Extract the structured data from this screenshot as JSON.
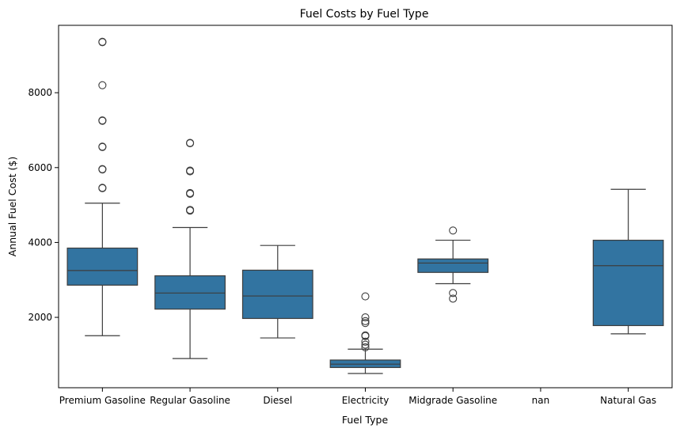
{
  "chart_data": {
    "type": "boxplot",
    "title": "Fuel Costs by Fuel Type",
    "xlabel": "Fuel Type",
    "ylabel": "Annual Fuel Cost ($)",
    "ylim": [
      120,
      9800
    ],
    "yticks": [
      2000,
      4000,
      6000,
      8000
    ],
    "grid": false,
    "box_color": "#3274a1",
    "categories": [
      "Premium Gasoline",
      "Regular Gasoline",
      "Diesel",
      "Electricity",
      "Midgrade Gasoline",
      "nan",
      "Natural Gas"
    ],
    "boxes": [
      {
        "category": "Premium Gasoline",
        "whisker_low": 1510,
        "q1": 2860,
        "median": 3250,
        "q3": 3850,
        "whisker_high": 5050,
        "outliers": [
          5450,
          5460,
          5950,
          5960,
          6550,
          6560,
          7250,
          7260,
          8200,
          9350,
          9360
        ]
      },
      {
        "category": "Regular Gasoline",
        "whisker_low": 900,
        "q1": 2220,
        "median": 2650,
        "q3": 3110,
        "whisker_high": 4400,
        "outliers": [
          4850,
          4870,
          5300,
          5320,
          5900,
          5920,
          6650,
          6660
        ]
      },
      {
        "category": "Diesel",
        "whisker_low": 1450,
        "q1": 1970,
        "median": 2570,
        "q3": 3260,
        "whisker_high": 3920,
        "outliers": []
      },
      {
        "category": "Electricity",
        "whisker_low": 500,
        "q1": 660,
        "median": 750,
        "q3": 860,
        "whisker_high": 1150,
        "outliers": [
          1200,
          1270,
          1350,
          1500,
          1520,
          1850,
          1900,
          2000,
          2560
        ]
      },
      {
        "category": "Midgrade Gasoline",
        "whisker_low": 2900,
        "q1": 3200,
        "median": 3450,
        "q3": 3560,
        "whisker_high": 4060,
        "outliers": [
          2500,
          2650,
          4320
        ]
      },
      {
        "category": "nan",
        "whisker_low": null,
        "q1": null,
        "median": null,
        "q3": null,
        "whisker_high": null,
        "outliers": []
      },
      {
        "category": "Natural Gas",
        "whisker_low": 1560,
        "q1": 1780,
        "median": 3380,
        "q3": 4060,
        "whisker_high": 5420,
        "outliers": []
      }
    ]
  }
}
